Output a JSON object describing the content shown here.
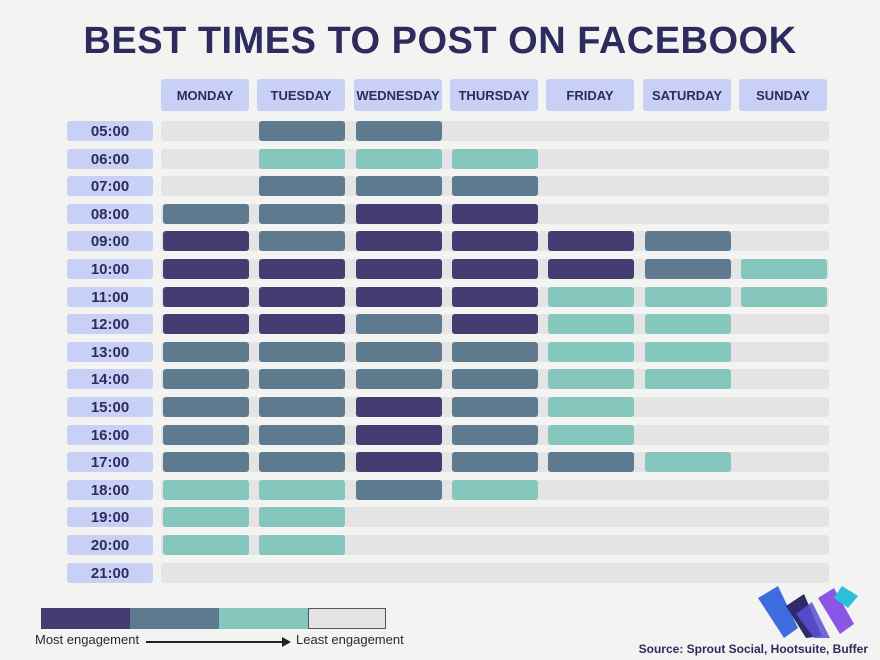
{
  "title": "BEST TIMES TO POST ON FACEBOOK",
  "colors": {
    "most": "#433d72",
    "high": "#5e7a8f",
    "medium": "#85c6bd",
    "least": "#e4e4e4",
    "header_bg": "#c8d1f5",
    "title": "#2e2b5f"
  },
  "chart_data": {
    "type": "heatmap",
    "title": "BEST TIMES TO POST ON FACEBOOK",
    "x_categories": [
      "MONDAY",
      "TUESDAY",
      "WEDNESDAY",
      "THURSDAY",
      "FRIDAY",
      "SATURDAY",
      "SUNDAY"
    ],
    "y_categories": [
      "05:00",
      "06:00",
      "07:00",
      "08:00",
      "09:00",
      "10:00",
      "11:00",
      "12:00",
      "13:00",
      "14:00",
      "15:00",
      "16:00",
      "17:00",
      "18:00",
      "19:00",
      "20:00",
      "21:00"
    ],
    "scale": [
      "Most engagement",
      "",
      "",
      "Least engagement"
    ],
    "engagement_levels_0_least_to_3_most": [
      [
        0,
        2,
        2,
        0,
        0,
        0,
        0
      ],
      [
        0,
        1,
        1,
        1,
        0,
        0,
        0
      ],
      [
        0,
        2,
        2,
        2,
        0,
        0,
        0
      ],
      [
        2,
        2,
        3,
        3,
        0,
        0,
        0
      ],
      [
        3,
        2,
        3,
        3,
        3,
        2,
        0
      ],
      [
        3,
        3,
        3,
        3,
        3,
        2,
        1
      ],
      [
        3,
        3,
        3,
        3,
        1,
        1,
        1
      ],
      [
        3,
        3,
        2,
        3,
        1,
        1,
        0
      ],
      [
        2,
        2,
        2,
        2,
        1,
        1,
        0
      ],
      [
        2,
        2,
        2,
        2,
        1,
        1,
        0
      ],
      [
        2,
        2,
        3,
        2,
        1,
        0,
        0
      ],
      [
        2,
        2,
        3,
        2,
        1,
        0,
        0
      ],
      [
        2,
        2,
        3,
        2,
        2,
        1,
        0
      ],
      [
        1,
        1,
        2,
        1,
        0,
        0,
        0
      ],
      [
        1,
        1,
        0,
        0,
        0,
        0,
        0
      ],
      [
        1,
        1,
        0,
        0,
        0,
        0,
        0
      ],
      [
        0,
        0,
        0,
        0,
        0,
        0,
        0
      ]
    ]
  },
  "legend": {
    "most_label": "Most engagement",
    "least_label": "Least engagement"
  },
  "source": "Source: Sprout Social, Hootsuite, Buffer"
}
